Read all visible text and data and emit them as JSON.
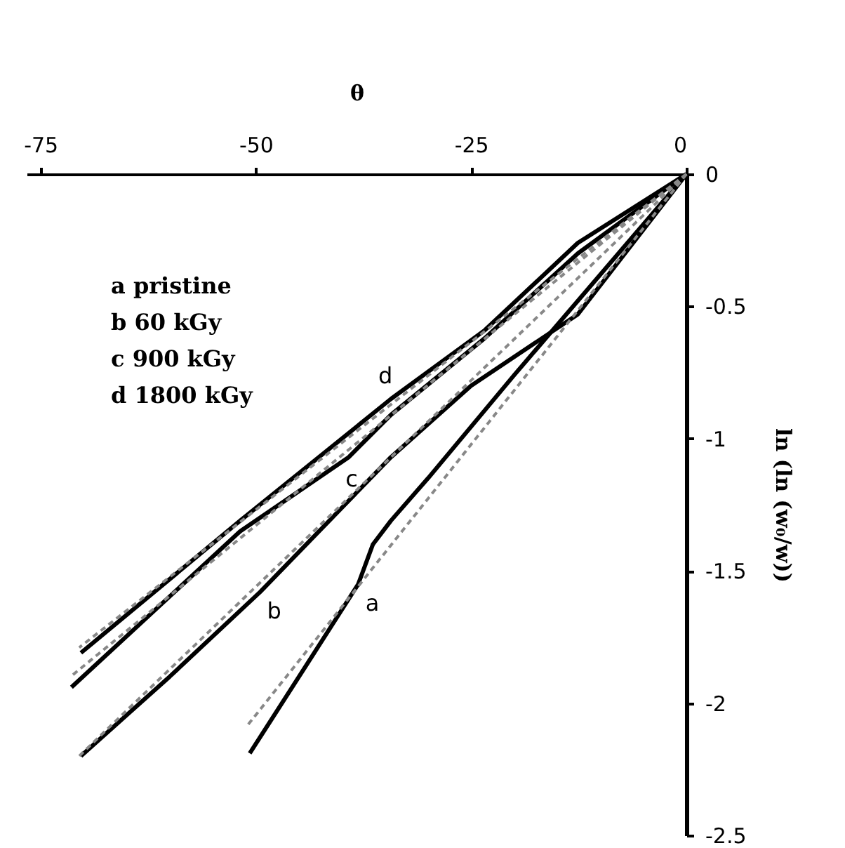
{
  "chart_data": {
    "type": "line",
    "xlabel": "θ",
    "ylabel": "ln (ln (w₀/w))",
    "xlim": [
      -76.6,
      0
    ],
    "xticks": [
      -75,
      -50,
      -25,
      0
    ],
    "ylim": [
      -2.5,
      0
    ],
    "yticks": [
      -2.5,
      -2,
      -1.5,
      -1,
      -0.5,
      0
    ],
    "grid": false,
    "marker": "none",
    "series": [
      {
        "color": "#000000",
        "line_style": "solid",
        "x": [
          0,
          -10,
          -20,
          -30,
          -34.3,
          -36.4,
          -38.1,
          -44,
          -50.7
        ],
        "values": [
          0,
          -0.38,
          -0.76,
          -1.15,
          -1.31,
          -1.4,
          -1.55,
          -1.85,
          -2.19
        ]
      },
      {
        "color": "#000000",
        "line_style": "solid",
        "x": [
          0,
          -12.6,
          -25,
          -34.3,
          -49.5,
          -60,
          -70.3
        ],
        "values": [
          0,
          -0.53,
          -0.8,
          -1.07,
          -1.58,
          -1.9,
          -2.2
        ]
      },
      {
        "color": "#000000",
        "line_style": "solid",
        "x": [
          0,
          -12.6,
          -23.4,
          -34.3,
          -39.2,
          -51.8,
          -71.4
        ],
        "values": [
          0,
          -0.3,
          -0.62,
          -0.91,
          -1.07,
          -1.35,
          -1.94
        ]
      },
      {
        "color": "#000000",
        "line_style": "solid",
        "x": [
          0,
          -12.6,
          -23.4,
          -34.3,
          -51.8,
          -70.3
        ],
        "values": [
          0,
          -0.26,
          -0.59,
          -0.85,
          -1.31,
          -1.81
        ]
      },
      {
        "color": "#888888",
        "line_style": "dashed",
        "x": [
          0,
          -51.1
        ],
        "values": [
          0,
          -2.09
        ]
      },
      {
        "color": "#888888",
        "line_style": "dashed",
        "x": [
          0,
          -70.5
        ],
        "values": [
          0,
          -2.2
        ]
      },
      {
        "color": "#888888",
        "line_style": "dashed",
        "x": [
          0,
          -71.5
        ],
        "values": [
          0,
          -1.9
        ]
      },
      {
        "color": "#888888",
        "line_style": "dashed",
        "x": [
          0,
          -70.5
        ],
        "values": [
          0,
          -1.79
        ]
      }
    ],
    "annotations": [
      "a pristine",
      "b 60 kGy",
      "c 900 kGy",
      "d 1800 kGy",
      {
        "text": "a",
        "x": -38.1,
        "y": -1.55
      },
      {
        "text": "b",
        "x": -49.5,
        "y": -1.58
      },
      {
        "text": "c",
        "x": -39.2,
        "y": -1.07
      },
      {
        "text": "d",
        "x": -34.3,
        "y": -0.85
      }
    ]
  }
}
